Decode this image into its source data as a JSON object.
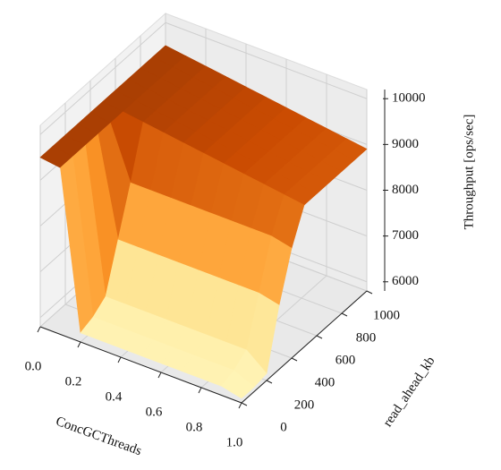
{
  "chart_data": {
    "type": "surface",
    "xlabel": "ConcGCThreads",
    "ylabel": "read_ahead_kb",
    "zlabel": "Throughput [ops/sec]",
    "x": [
      0,
      0.1,
      0.2,
      0.3,
      0.4,
      0.5,
      0.6,
      0.7,
      0.8,
      0.9,
      1
    ],
    "y": [
      0,
      100,
      200,
      300,
      400,
      500,
      600,
      700,
      800,
      900,
      1000
    ],
    "z": [
      [
        9500,
        9440,
        6000,
        6000,
        6000,
        6000,
        6000,
        6000,
        6000,
        6000,
        5900
      ],
      [
        9500,
        9440,
        6100,
        6100,
        6100,
        6100,
        6100,
        6100,
        6100,
        6100,
        5900
      ],
      [
        9500,
        9440,
        6300,
        6300,
        6300,
        6300,
        6300,
        6300,
        6300,
        6300,
        5950
      ],
      [
        9500,
        9440,
        7300,
        7300,
        7300,
        7300,
        7300,
        7300,
        7300,
        7300,
        7200
      ],
      [
        9500,
        9440,
        8300,
        8300,
        8300,
        8300,
        8300,
        8300,
        8300,
        8300,
        8200
      ],
      [
        9500,
        9440,
        9380,
        9320,
        9260,
        9200,
        9140,
        9080,
        9020,
        8960,
        8900
      ],
      [
        9500,
        9440,
        9380,
        9320,
        9260,
        9200,
        9140,
        9080,
        9020,
        8960,
        8900
      ],
      [
        9500,
        9440,
        9380,
        9320,
        9260,
        9200,
        9140,
        9080,
        9020,
        8960,
        8900
      ],
      [
        9500,
        9440,
        9380,
        9320,
        9260,
        9200,
        9140,
        9080,
        9020,
        8960,
        8900
      ],
      [
        9500,
        9440,
        9380,
        9320,
        9260,
        9200,
        9140,
        9080,
        9020,
        8960,
        8900
      ],
      [
        9500,
        9440,
        9380,
        9320,
        9260,
        9200,
        9140,
        9080,
        9020,
        8960,
        8900
      ]
    ],
    "xlim": [
      0,
      1
    ],
    "ylim": [
      0,
      1000
    ],
    "zlim": [
      5800,
      10200
    ],
    "xticks": [
      {
        "value": 0,
        "label": "0.0"
      },
      0.2,
      0.4,
      0.6,
      0.8,
      {
        "value": 1,
        "label": "1.0"
      }
    ],
    "yticks": [
      0,
      200,
      400,
      600,
      800,
      1000
    ],
    "zticks": [
      6000,
      7000,
      8000,
      9000,
      10000
    ],
    "colormap": [
      "#fff7bc",
      "#fee391",
      "#fe9929",
      "#cc4c02",
      "#662506"
    ],
    "grid": true
  }
}
